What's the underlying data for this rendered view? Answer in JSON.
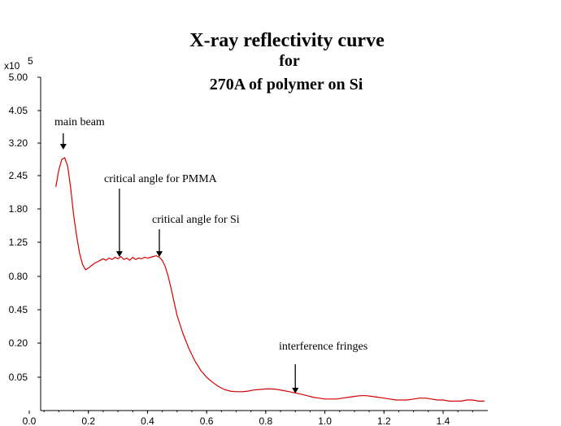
{
  "chart_data": {
    "type": "line",
    "title_lines": [
      "X-ray reflectivity curve",
      "for",
      "270A of polymer on Si"
    ],
    "y_multiplier": "x10",
    "y_multiplier_exp": "5",
    "x_ticks": [
      "0.0",
      "0.2",
      "0.4",
      "0.6",
      "0.8",
      "1.0",
      "1.2",
      "1.4"
    ],
    "x_tick_values": [
      0.0,
      0.2,
      0.4,
      0.6,
      0.8,
      1.0,
      1.2,
      1.4
    ],
    "y_ticks": [
      "5.00",
      "4.05",
      "3.20",
      "2.45",
      "1.80",
      "1.25",
      "0.80",
      "0.45",
      "0.20",
      "0.05"
    ],
    "y_tick_values": [
      5.0,
      4.05,
      3.2,
      2.45,
      1.8,
      1.25,
      0.8,
      0.45,
      0.2,
      0.05
    ],
    "xlim": [
      0.0,
      1.54
    ],
    "ylim": [
      0.0,
      5.0
    ],
    "y_scale": "sqrt",
    "line_color": "#d40000",
    "series": [
      {
        "x": [
          0.09,
          0.1,
          0.11,
          0.12,
          0.13,
          0.14,
          0.15,
          0.16,
          0.17,
          0.18,
          0.19,
          0.2,
          0.21,
          0.22,
          0.23,
          0.24,
          0.25,
          0.26,
          0.27,
          0.28,
          0.29,
          0.3,
          0.31,
          0.32,
          0.33,
          0.34,
          0.35,
          0.36,
          0.37,
          0.38,
          0.39,
          0.4,
          0.41,
          0.42,
          0.43,
          0.44,
          0.45,
          0.46,
          0.47,
          0.48,
          0.49,
          0.5,
          0.52,
          0.54,
          0.56,
          0.58,
          0.6,
          0.62,
          0.64,
          0.66,
          0.68,
          0.7,
          0.72,
          0.74,
          0.76,
          0.78,
          0.8,
          0.82,
          0.84,
          0.86,
          0.88,
          0.9,
          0.92,
          0.94,
          0.96,
          0.98,
          1.0,
          1.02,
          1.04,
          1.06,
          1.08,
          1.1,
          1.12,
          1.14,
          1.16,
          1.18,
          1.2,
          1.22,
          1.24,
          1.26,
          1.28,
          1.3,
          1.32,
          1.34,
          1.36,
          1.38,
          1.4,
          1.42,
          1.44,
          1.46,
          1.48,
          1.5,
          1.52,
          1.54
        ],
        "values": [
          2.22,
          2.58,
          2.81,
          2.85,
          2.65,
          2.2,
          1.7,
          1.35,
          1.1,
          0.95,
          0.88,
          0.9,
          0.93,
          0.96,
          0.98,
          1.0,
          1.02,
          1.0,
          1.03,
          1.01,
          1.04,
          1.02,
          1.05,
          1.01,
          1.03,
          1.0,
          1.04,
          1.01,
          1.03,
          1.02,
          1.04,
          1.03,
          1.04,
          1.05,
          1.06,
          1.04,
          1.0,
          0.92,
          0.8,
          0.66,
          0.52,
          0.4,
          0.26,
          0.17,
          0.11,
          0.072,
          0.05,
          0.036,
          0.026,
          0.02,
          0.017,
          0.016,
          0.016,
          0.017,
          0.019,
          0.02,
          0.021,
          0.021,
          0.02,
          0.018,
          0.016,
          0.014,
          0.012,
          0.01,
          0.008,
          0.007,
          0.006,
          0.006,
          0.006,
          0.007,
          0.008,
          0.009,
          0.01,
          0.01,
          0.009,
          0.008,
          0.007,
          0.006,
          0.005,
          0.005,
          0.005,
          0.006,
          0.007,
          0.007,
          0.006,
          0.005,
          0.005,
          0.004,
          0.004,
          0.004,
          0.005,
          0.005,
          0.004,
          0.004
        ]
      }
    ],
    "annotations": [
      {
        "text": "main beam",
        "x": 0.115,
        "y": 2.86
      },
      {
        "text": "critical angle for PMMA",
        "x": 0.305,
        "y": 1.05
      },
      {
        "text": "critical angle for Si",
        "x": 0.44,
        "y": 1.06
      },
      {
        "text": "interference fringes",
        "x": 0.9,
        "y": 0.016
      }
    ]
  }
}
